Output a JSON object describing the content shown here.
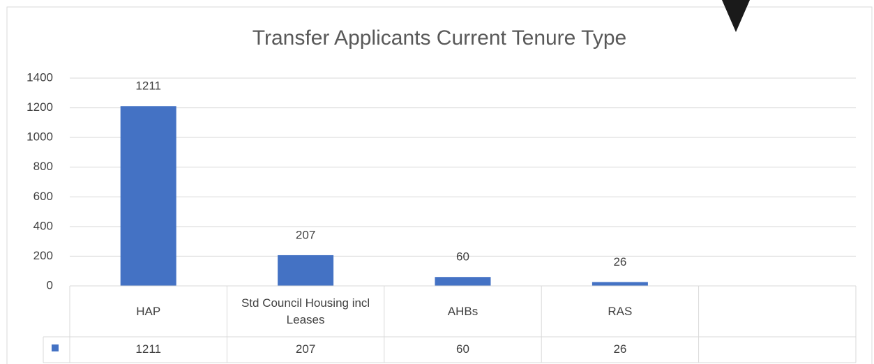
{
  "chart_data": {
    "type": "bar",
    "title": "Transfer Applicants Current Tenure Type",
    "categories": [
      "HAP",
      "Std Council Housing incl Leases",
      "AHBs",
      "RAS",
      null
    ],
    "values": [
      1211,
      207,
      60,
      26,
      null
    ],
    "color": "#4472c4",
    "ylim": [
      0,
      1400
    ],
    "yticks": [
      0,
      200,
      400,
      600,
      800,
      1000,
      1200,
      1400
    ],
    "grid": true,
    "data_table": true
  }
}
